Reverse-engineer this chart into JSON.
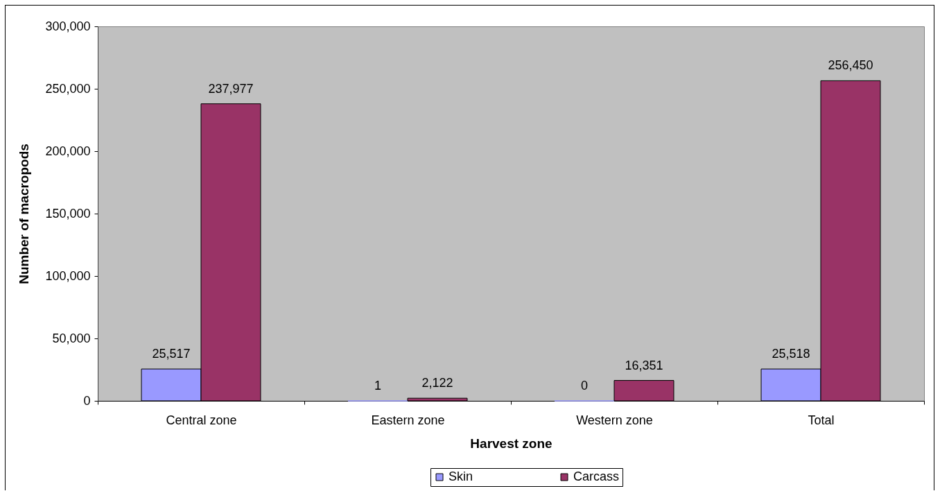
{
  "chart_data": {
    "type": "bar",
    "xlabel": "Harvest zone",
    "ylabel": "Number of macropods",
    "categories": [
      "Central zone",
      "Eastern zone",
      "Western zone",
      "Total"
    ],
    "series": [
      {
        "name": "Skin",
        "color": "#9999ff",
        "values": [
          25517,
          1,
          0,
          25518
        ],
        "value_labels": [
          "25,517",
          "1",
          "0",
          "25,518"
        ]
      },
      {
        "name": "Carcass",
        "color": "#993366",
        "values": [
          237977,
          2122,
          16351,
          256450
        ],
        "value_labels": [
          "237,977",
          "2,122",
          "16,351",
          "256,450"
        ]
      }
    ],
    "ylim": [
      0,
      300000
    ],
    "yticks": [
      0,
      {
        "value": 50000,
        "label": "50,000"
      },
      {
        "value": 100000,
        "label": "100,000"
      },
      {
        "value": 150000,
        "label": "150,000"
      },
      {
        "value": 200000,
        "label": "200,000"
      },
      {
        "value": 250000,
        "label": "250,000"
      },
      {
        "value": 300000,
        "label": "300,000"
      }
    ],
    "grid": false,
    "legend": "bottom"
  }
}
